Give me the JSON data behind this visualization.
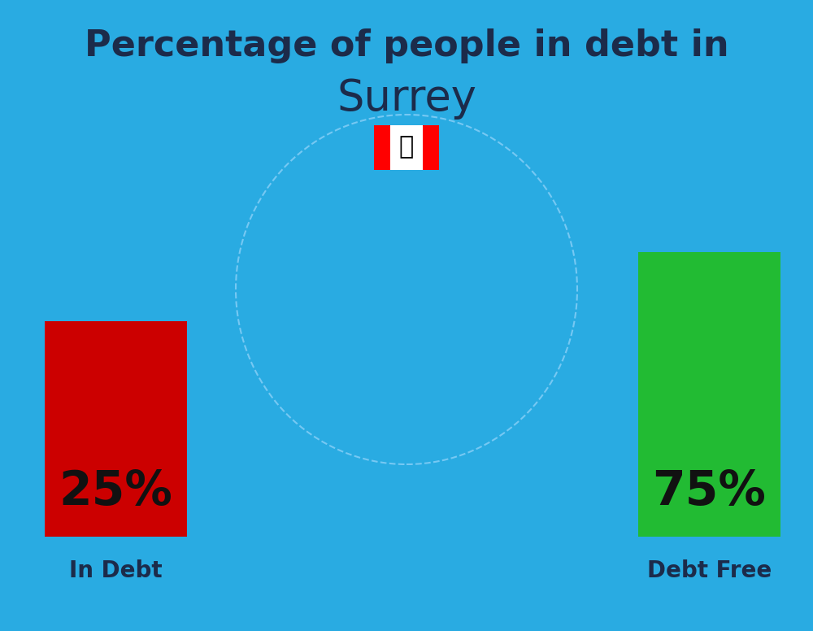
{
  "title_line1": "Percentage of people in debt in",
  "title_line2": "Surrey",
  "background_color": "#29ABE2",
  "bar1_label": "25%",
  "bar1_color": "#CC0000",
  "bar1_caption": "In Debt",
  "bar2_label": "75%",
  "bar2_color": "#22BB33",
  "bar2_caption": "Debt Free",
  "title_fontsize": 32,
  "subtitle_fontsize": 38,
  "bar_label_fontsize": 42,
  "caption_fontsize": 20,
  "title_color": "#1C2B4A",
  "subtitle_color": "#1C2B4A",
  "caption_color": "#1C2B4A",
  "bar_label_color": "#111111",
  "flag_red": "#FF0000",
  "flag_white": "#FFFFFF"
}
